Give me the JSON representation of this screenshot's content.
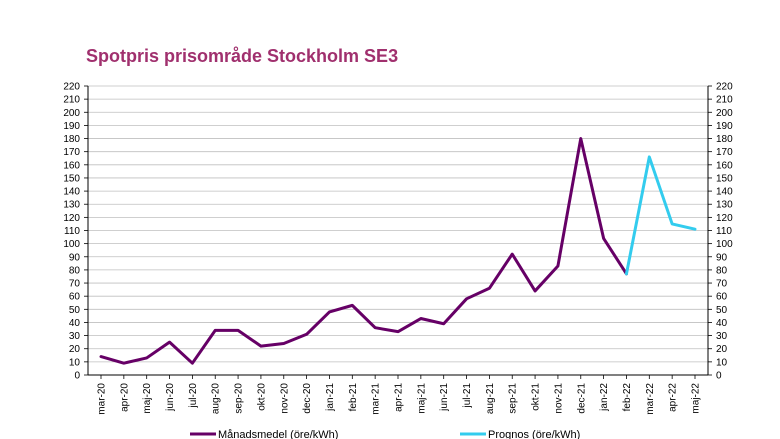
{
  "chart_data": {
    "type": "line",
    "title": "Spotpris prisområde Stockholm SE3",
    "colors": {
      "title": "#a0306e",
      "monthly": "#660066",
      "forecast": "#33ccee",
      "grid": "#bfbfbf"
    },
    "ylim": [
      0,
      220
    ],
    "ytick_step": 10,
    "grid": "horizontal",
    "legend_position": "bottom",
    "categories": [
      "mar-20",
      "apr-20",
      "maj-20",
      "jun-20",
      "jul-20",
      "aug-20",
      "sep-20",
      "okt-20",
      "nov-20",
      "dec-20",
      "jan-21",
      "feb-21",
      "mar-21",
      "apr-21",
      "maj-21",
      "jun-21",
      "jul-21",
      "aug-21",
      "sep-21",
      "okt-21",
      "nov-21",
      "dec-21",
      "jan-22",
      "feb-22",
      "mar-22",
      "apr-22",
      "maj-22"
    ],
    "series": [
      {
        "name": "Månadsmedel (öre/kWh)",
        "color": "#660066",
        "values": [
          14,
          9,
          13,
          25,
          9,
          34,
          34,
          22,
          24,
          31,
          48,
          53,
          36,
          33,
          43,
          39,
          58,
          66,
          92,
          64,
          83,
          180,
          104,
          77,
          null,
          null,
          null
        ]
      },
      {
        "name": "Prognos (öre/kWh)",
        "color": "#33ccee",
        "values": [
          null,
          null,
          null,
          null,
          null,
          null,
          null,
          null,
          null,
          null,
          null,
          null,
          null,
          null,
          null,
          null,
          null,
          null,
          null,
          null,
          null,
          null,
          null,
          77,
          166,
          115,
          111
        ]
      }
    ]
  }
}
